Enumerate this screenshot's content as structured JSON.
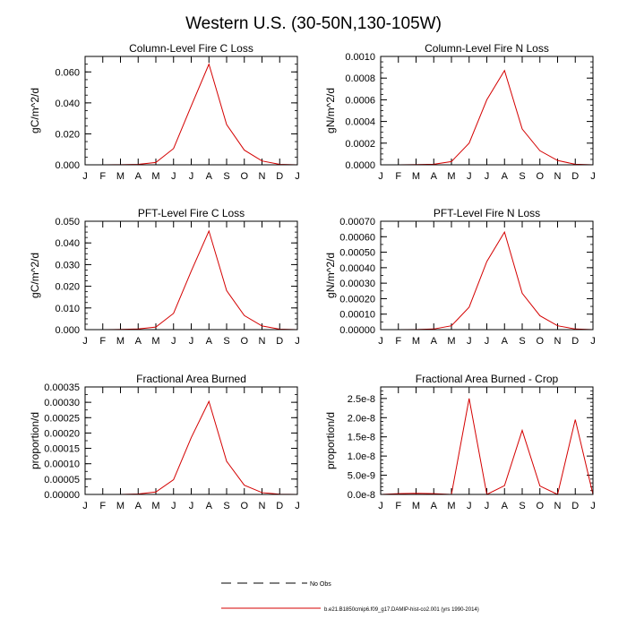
{
  "figure": {
    "title": "Western U.S. (30-50N,130-105W)",
    "legend": {
      "position": "bottom-center",
      "entries": [
        {
          "label": "No Obs",
          "style": "dashed",
          "color": "#000000"
        },
        {
          "label": "b.e21.B1850cmip6.f09_g17.DAMIP-hist-co2.001 (yrs 1990-2014)",
          "style": "solid",
          "color": "#d40000"
        }
      ]
    }
  },
  "series_color": "#d40000",
  "chart_data": [
    {
      "type": "line",
      "title": "Column-Level Fire C Loss",
      "ylabel": "gC/m^2/d",
      "x": [
        "J",
        "F",
        "M",
        "A",
        "M",
        "J",
        "J",
        "A",
        "S",
        "O",
        "N",
        "D",
        "J"
      ],
      "ylim": [
        0,
        0.07
      ],
      "yticks": [
        "0.000",
        "0.020",
        "0.040",
        "0.060"
      ],
      "ytick_values": [
        0,
        0.02,
        0.04,
        0.06
      ],
      "y_minor_step": 0.005,
      "series": [
        {
          "values": [
            0,
            0,
            0.0001,
            0.0003,
            0.0015,
            0.0105,
            0.038,
            0.065,
            0.026,
            0.0095,
            0.0025,
            0.0003,
            0
          ]
        }
      ]
    },
    {
      "type": "line",
      "title": "Column-Level Fire N Loss",
      "ylabel": "gN/m^2/d",
      "x": [
        "J",
        "F",
        "M",
        "A",
        "M",
        "J",
        "J",
        "A",
        "S",
        "O",
        "N",
        "D",
        "J"
      ],
      "ylim": [
        0,
        0.001
      ],
      "yticks": [
        "0.0000",
        "0.0002",
        "0.0004",
        "0.0006",
        "0.0008",
        "0.0010"
      ],
      "ytick_values": [
        0,
        0.0002,
        0.0004,
        0.0006,
        0.0008,
        0.001
      ],
      "y_minor_step": 5e-05,
      "series": [
        {
          "values": [
            0,
            0,
            2e-06,
            5e-06,
            3e-05,
            0.0002,
            0.0006,
            0.00087,
            0.00033,
            0.00013,
            4e-05,
            5e-06,
            0
          ]
        }
      ]
    },
    {
      "type": "line",
      "title": "PFT-Level Fire C Loss",
      "ylabel": "gC/m^2/d",
      "x": [
        "J",
        "F",
        "M",
        "A",
        "M",
        "J",
        "J",
        "A",
        "S",
        "O",
        "N",
        "D",
        "J"
      ],
      "ylim": [
        0,
        0.05
      ],
      "yticks": [
        "0.000",
        "0.010",
        "0.020",
        "0.030",
        "0.040",
        "0.050"
      ],
      "ytick_values": [
        0,
        0.01,
        0.02,
        0.03,
        0.04,
        0.05
      ],
      "y_minor_step": 0.0025,
      "series": [
        {
          "values": [
            0,
            0,
            0.0001,
            0.0003,
            0.0012,
            0.0075,
            0.027,
            0.0455,
            0.018,
            0.0065,
            0.0017,
            0.0002,
            0
          ]
        }
      ]
    },
    {
      "type": "line",
      "title": "PFT-Level Fire N Loss",
      "ylabel": "gN/m^2/d",
      "x": [
        "J",
        "F",
        "M",
        "A",
        "M",
        "J",
        "J",
        "A",
        "S",
        "O",
        "N",
        "D",
        "J"
      ],
      "ylim": [
        0,
        0.0007
      ],
      "yticks": [
        "0.00000",
        "0.00010",
        "0.00020",
        "0.00030",
        "0.00040",
        "0.00050",
        "0.00060",
        "0.00070"
      ],
      "ytick_values": [
        0,
        0.0001,
        0.0002,
        0.0003,
        0.0004,
        0.0005,
        0.0006,
        0.0007
      ],
      "y_minor_step": 5e-05,
      "series": [
        {
          "values": [
            0,
            0,
            1e-06,
            4e-06,
            2.5e-05,
            0.000145,
            0.00044,
            0.00063,
            0.000235,
            9e-05,
            2.5e-05,
            4e-06,
            0
          ]
        }
      ]
    },
    {
      "type": "line",
      "title": "Fractional Area Burned",
      "ylabel": "proportion/d",
      "x": [
        "J",
        "F",
        "M",
        "A",
        "M",
        "J",
        "J",
        "A",
        "S",
        "O",
        "N",
        "D",
        "J"
      ],
      "ylim": [
        0,
        0.00035
      ],
      "yticks": [
        "0.00000",
        "0.00005",
        "0.00010",
        "0.00015",
        "0.00020",
        "0.00025",
        "0.00030",
        "0.00035"
      ],
      "ytick_values": [
        0,
        5e-05,
        0.0001,
        0.00015,
        0.0002,
        0.00025,
        0.0003,
        0.00035
      ],
      "y_minor_step": 2.5e-05,
      "series": [
        {
          "values": [
            0,
            0,
            0,
            1.5e-06,
            8e-06,
            4.8e-05,
            0.000185,
            0.000303,
            0.000108,
            3e-05,
            6e-06,
            8e-07,
            0
          ]
        }
      ]
    },
    {
      "type": "line",
      "title": "Fractional Area Burned - Crop",
      "ylabel": "proportion/d",
      "x": [
        "J",
        "F",
        "M",
        "A",
        "M",
        "J",
        "J",
        "A",
        "S",
        "O",
        "N",
        "D",
        "J"
      ],
      "ylim": [
        0,
        2.8e-08
      ],
      "yticks": [
        "0.0e-8",
        "5.0e-9",
        "1.0e-8",
        "1.5e-8",
        "2.0e-8",
        "2.5e-8"
      ],
      "ytick_values": [
        0,
        5e-09,
        1e-08,
        1.5e-08,
        2e-08,
        2.5e-08
      ],
      "y_minor_step": 1e-09,
      "series": [
        {
          "values": [
            0,
            2e-10,
            3e-10,
            2e-10,
            0,
            2.5e-08,
            0,
            2.3e-09,
            1.67e-08,
            2.2e-09,
            0,
            1.95e-08,
            0
          ]
        }
      ]
    }
  ]
}
